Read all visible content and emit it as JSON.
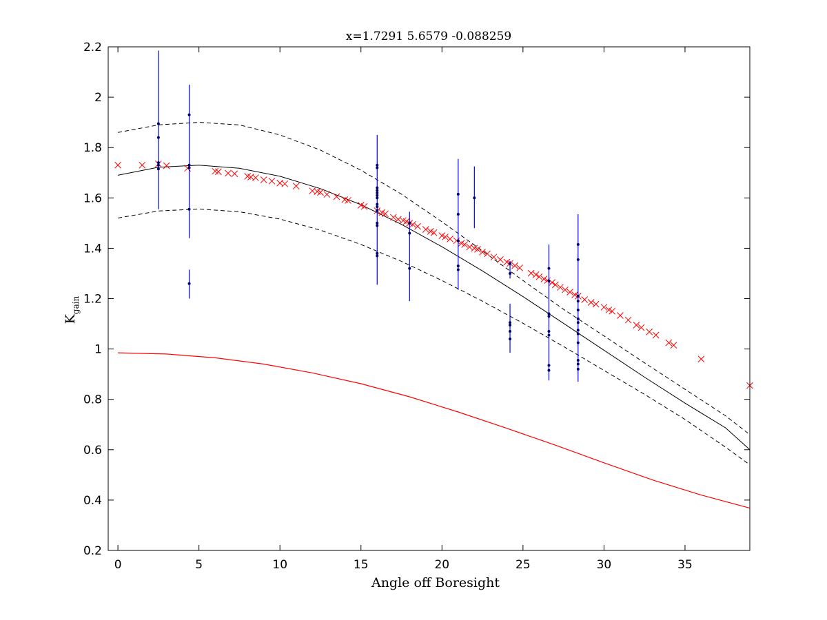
{
  "chart_data": {
    "type": "scatter",
    "title": "x=1.7291 5.6579 -0.088259",
    "xlabel": "Angle off Boresight",
    "ylabel": "K",
    "ylabel_subscript": "gain",
    "xlim": [
      -0.6,
      39
    ],
    "ylim": [
      0.2,
      2.2
    ],
    "xticks": [
      0,
      5,
      10,
      15,
      20,
      25,
      30,
      35
    ],
    "yticks": [
      0.2,
      0.4,
      0.6,
      0.8,
      1,
      1.2,
      1.4,
      1.6,
      1.8,
      2,
      2.2
    ],
    "ytick_labels": [
      "0.2",
      "0.4",
      "0.6",
      "0.8",
      "1",
      "1.2",
      "1.4",
      "1.6",
      "1.8",
      "2",
      "2.2"
    ],
    "grid": false,
    "colors": {
      "fit": "#000000",
      "bounds": "#000000",
      "model": "#ff0000",
      "measured": "#ff0000",
      "errorbars": "#0000ff",
      "points": "#000066"
    },
    "fit_curve": {
      "x": [
        0,
        2.5,
        5,
        7.5,
        10,
        12.5,
        15,
        17.5,
        20,
        22.5,
        25,
        27.5,
        30,
        32.5,
        35,
        37.5,
        39
      ],
      "y": [
        1.69,
        1.722,
        1.73,
        1.718,
        1.686,
        1.637,
        1.573,
        1.495,
        1.406,
        1.31,
        1.208,
        1.102,
        0.995,
        0.888,
        0.785,
        0.687,
        0.6
      ]
    },
    "upper_bound": {
      "x": [
        0,
        2.5,
        5,
        7.5,
        10,
        12.5,
        15,
        17.5,
        20,
        22.5,
        25,
        27.5,
        30,
        32.5,
        35,
        37.5,
        39
      ],
      "y": [
        1.86,
        1.89,
        1.9,
        1.89,
        1.85,
        1.79,
        1.71,
        1.615,
        1.505,
        1.39,
        1.272,
        1.158,
        1.052,
        0.945,
        0.84,
        0.735,
        0.66
      ]
    },
    "lower_bound": {
      "x": [
        0,
        2.5,
        5,
        7.5,
        10,
        12.5,
        15,
        17.5,
        20,
        22.5,
        25,
        27.5,
        30,
        32.5,
        35,
        37.5,
        39
      ],
      "y": [
        1.52,
        1.548,
        1.556,
        1.545,
        1.516,
        1.472,
        1.415,
        1.348,
        1.272,
        1.19,
        1.102,
        1.01,
        0.915,
        0.82,
        0.72,
        0.61,
        0.54
      ]
    },
    "model_curve": {
      "x": [
        0,
        3,
        6,
        9,
        12,
        15,
        18,
        21,
        24,
        27,
        30,
        33,
        36,
        39
      ],
      "y": [
        0.985,
        0.98,
        0.965,
        0.94,
        0.905,
        0.862,
        0.81,
        0.75,
        0.685,
        0.618,
        0.548,
        0.48,
        0.42,
        0.368
      ]
    },
    "measured_x": {
      "x": [
        0,
        1.5,
        2.5,
        3,
        4.3,
        6,
        6.2,
        6.8,
        7.2,
        8,
        8.2,
        8.5,
        9,
        9.5,
        10,
        10.3,
        11,
        12,
        12.3,
        12.5,
        12.9,
        13.5,
        14,
        14.2,
        15,
        15.2,
        16,
        16.3,
        16.5,
        17,
        17.3,
        17.6,
        17.8,
        18,
        18.2,
        18.5,
        19,
        19.3,
        19.5,
        20,
        20.2,
        20.5,
        20.9,
        21.2,
        21.4,
        21.7,
        22,
        22.2,
        22.5,
        22.8,
        23.2,
        23.6,
        24,
        24.2,
        24.5,
        24.8,
        25.5,
        25.8,
        26,
        26.3,
        26.5,
        26.8,
        27,
        27.3,
        27.6,
        27.9,
        28.2,
        28.4,
        28.8,
        29.2,
        29.5,
        30,
        30.3,
        30.5,
        31,
        31.5,
        32,
        32.3,
        32.8,
        33.2,
        34,
        34.3,
        36,
        39
      ],
      "y": [
        1.73,
        1.73,
        1.735,
        1.728,
        1.718,
        1.706,
        1.704,
        1.698,
        1.696,
        1.686,
        1.683,
        1.68,
        1.672,
        1.667,
        1.659,
        1.656,
        1.647,
        1.628,
        1.625,
        1.622,
        1.614,
        1.605,
        1.593,
        1.59,
        1.571,
        1.566,
        1.549,
        1.542,
        1.537,
        1.523,
        1.515,
        1.51,
        1.506,
        1.5,
        1.495,
        1.487,
        1.475,
        1.467,
        1.462,
        1.45,
        1.445,
        1.437,
        1.43,
        1.42,
        1.415,
        1.405,
        1.4,
        1.396,
        1.385,
        1.378,
        1.365,
        1.355,
        1.345,
        1.34,
        1.331,
        1.322,
        1.301,
        1.295,
        1.287,
        1.278,
        1.272,
        1.264,
        1.255,
        1.245,
        1.235,
        1.226,
        1.215,
        1.21,
        1.196,
        1.185,
        1.178,
        1.166,
        1.155,
        1.15,
        1.133,
        1.115,
        1.095,
        1.085,
        1.068,
        1.055,
        1.025,
        1.015,
        0.96,
        0.855
      ]
    },
    "error_bars": [
      {
        "x": 2.5,
        "y_low": 1.555,
        "y_high": 2.185
      },
      {
        "x": 4.4,
        "y_low": 1.44,
        "y_high": 2.05
      },
      {
        "x": 4.4,
        "y_low": 1.2,
        "y_high": 1.315
      },
      {
        "x": 16,
        "y_low": 1.255,
        "y_high": 1.85
      },
      {
        "x": 18,
        "y_low": 1.19,
        "y_high": 1.545
      },
      {
        "x": 21,
        "y_low": 1.235,
        "y_high": 1.755
      },
      {
        "x": 22,
        "y_low": 1.48,
        "y_high": 1.725
      },
      {
        "x": 24.2,
        "y_low": 0.985,
        "y_high": 1.18
      },
      {
        "x": 24.2,
        "y_low": 1.28,
        "y_high": 1.35
      },
      {
        "x": 26.6,
        "y_low": 0.875,
        "y_high": 1.415
      },
      {
        "x": 28.4,
        "y_low": 0.87,
        "y_high": 1.535
      }
    ],
    "data_points": [
      {
        "x": 2.5,
        "y": 1.895
      },
      {
        "x": 2.5,
        "y": 1.84
      },
      {
        "x": 2.5,
        "y": 1.74
      },
      {
        "x": 2.5,
        "y": 1.73
      },
      {
        "x": 2.5,
        "y": 1.715
      },
      {
        "x": 4.4,
        "y": 1.93
      },
      {
        "x": 4.4,
        "y": 1.73
      },
      {
        "x": 4.4,
        "y": 1.72
      },
      {
        "x": 4.4,
        "y": 1.555
      },
      {
        "x": 4.4,
        "y": 1.26
      },
      {
        "x": 16,
        "y": 1.73
      },
      {
        "x": 16,
        "y": 1.72
      },
      {
        "x": 16,
        "y": 1.64
      },
      {
        "x": 16,
        "y": 1.63
      },
      {
        "x": 16,
        "y": 1.62
      },
      {
        "x": 16,
        "y": 1.61
      },
      {
        "x": 16,
        "y": 1.6
      },
      {
        "x": 16,
        "y": 1.575
      },
      {
        "x": 16,
        "y": 1.565
      },
      {
        "x": 16,
        "y": 1.55
      },
      {
        "x": 16,
        "y": 1.5
      },
      {
        "x": 16,
        "y": 1.49
      },
      {
        "x": 16,
        "y": 1.38
      },
      {
        "x": 16,
        "y": 1.37
      },
      {
        "x": 18,
        "y": 1.5
      },
      {
        "x": 18,
        "y": 1.46
      },
      {
        "x": 18,
        "y": 1.32
      },
      {
        "x": 21,
        "y": 1.615
      },
      {
        "x": 21,
        "y": 1.535
      },
      {
        "x": 21,
        "y": 1.43
      },
      {
        "x": 21,
        "y": 1.33
      },
      {
        "x": 21,
        "y": 1.315
      },
      {
        "x": 22,
        "y": 1.6
      },
      {
        "x": 24.2,
        "y": 1.34
      },
      {
        "x": 24.2,
        "y": 1.3
      },
      {
        "x": 24.2,
        "y": 1.105
      },
      {
        "x": 24.2,
        "y": 1.095
      },
      {
        "x": 24.2,
        "y": 1.07
      },
      {
        "x": 24.2,
        "y": 1.04
      },
      {
        "x": 26.6,
        "y": 1.32
      },
      {
        "x": 26.6,
        "y": 1.27
      },
      {
        "x": 26.6,
        "y": 1.14
      },
      {
        "x": 26.6,
        "y": 1.13
      },
      {
        "x": 26.6,
        "y": 1.07
      },
      {
        "x": 26.6,
        "y": 1.055
      },
      {
        "x": 26.6,
        "y": 0.935
      },
      {
        "x": 26.6,
        "y": 0.915
      },
      {
        "x": 28.4,
        "y": 1.415
      },
      {
        "x": 28.4,
        "y": 1.355
      },
      {
        "x": 28.4,
        "y": 1.21
      },
      {
        "x": 28.4,
        "y": 1.19
      },
      {
        "x": 28.4,
        "y": 1.155
      },
      {
        "x": 28.4,
        "y": 1.12
      },
      {
        "x": 28.4,
        "y": 1.105
      },
      {
        "x": 28.4,
        "y": 1.075
      },
      {
        "x": 28.4,
        "y": 1.06
      },
      {
        "x": 28.4,
        "y": 1.025
      },
      {
        "x": 28.4,
        "y": 0.955
      },
      {
        "x": 28.4,
        "y": 0.94
      },
      {
        "x": 28.4,
        "y": 0.92
      }
    ]
  }
}
